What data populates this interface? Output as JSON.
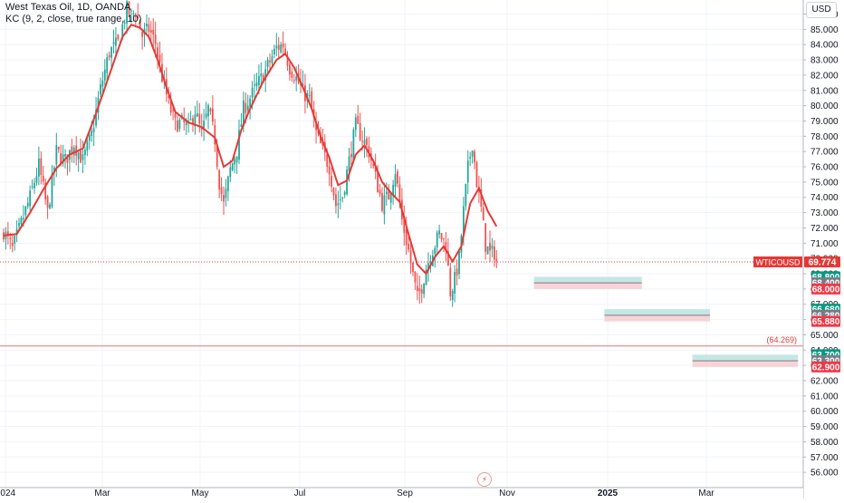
{
  "legend": {
    "symbol_line": "West Texas Oil, 1D, OANDA",
    "indicator_line": "KC (9, 2, close, true range, 10)"
  },
  "currency_button": "USD",
  "colors": {
    "up": "#26a69a",
    "down": "#ef5350",
    "kc_line": "#e53935",
    "price_line": "#e53935",
    "support_line": "#e57373",
    "zone_top": "#b2dfdb",
    "zone_bottom": "#f8c8cc",
    "axis_text": "#131722",
    "grid": "#f0f3fa"
  },
  "icons": {
    "time_marker": "lightning-icon"
  },
  "chart_data": {
    "type": "candlestick",
    "title": "West Texas Oil, 1D, OANDA",
    "indicator": "KC (9, 2, close, true range, 10)",
    "y_axis": {
      "side": "right",
      "range": [
        55.0,
        86.8
      ],
      "ticks": [
        "56.000",
        "57.000",
        "58.000",
        "59.000",
        "60.000",
        "61.000",
        "62.000",
        "63.000",
        "64.000",
        "65.000",
        "66.000",
        "67.000",
        "68.000",
        "69.000",
        "70.000",
        "71.000",
        "72.000",
        "73.000",
        "74.000",
        "75.000",
        "76.000",
        "77.000",
        "78.000",
        "79.000",
        "80.000",
        "81.000",
        "82.000",
        "83.000",
        "84.000",
        "85.000",
        "86.000"
      ]
    },
    "x_axis": {
      "ticks": [
        "2024",
        "Mar",
        "May",
        "Jul",
        "Sep",
        "Nov",
        "2025",
        "Mar"
      ],
      "bold_ticks": [
        "2025"
      ]
    },
    "grid": true,
    "close_anchors": [
      [
        0,
        71.8
      ],
      [
        4,
        70.6
      ],
      [
        8,
        72.3
      ],
      [
        12,
        74.0
      ],
      [
        16,
        76.1
      ],
      [
        20,
        73.0
      ],
      [
        24,
        77.0
      ],
      [
        28,
        76.4
      ],
      [
        32,
        77.5
      ],
      [
        36,
        76.4
      ],
      [
        40,
        78.1
      ],
      [
        44,
        81.1
      ],
      [
        48,
        83.5
      ],
      [
        52,
        84.1
      ],
      [
        56,
        86.3
      ],
      [
        58,
        85.9
      ],
      [
        60,
        86.2
      ],
      [
        63,
        84.6
      ],
      [
        66,
        85.0
      ],
      [
        69,
        84.1
      ],
      [
        72,
        81.9
      ],
      [
        75,
        80.1
      ],
      [
        78,
        78.8
      ],
      [
        81,
        78.9
      ],
      [
        84,
        78.5
      ],
      [
        87,
        79.7
      ],
      [
        90,
        78.1
      ],
      [
        93,
        79.8
      ],
      [
        96,
        77.8
      ],
      [
        98,
        75.0
      ],
      [
        100,
        73.5
      ],
      [
        103,
        75.8
      ],
      [
        106,
        77.1
      ],
      [
        109,
        79.8
      ],
      [
        112,
        80.5
      ],
      [
        115,
        81.3
      ],
      [
        118,
        82.0
      ],
      [
        121,
        82.9
      ],
      [
        124,
        83.8
      ],
      [
        127,
        84.0
      ],
      [
        130,
        82.5
      ],
      [
        133,
        81.8
      ],
      [
        136,
        80.9
      ],
      [
        139,
        80.4
      ],
      [
        142,
        78.2
      ],
      [
        145,
        77.0
      ],
      [
        148,
        76.0
      ],
      [
        151,
        73.5
      ],
      [
        154,
        74.1
      ],
      [
        157,
        76.4
      ],
      [
        160,
        78.7
      ],
      [
        163,
        77.9
      ],
      [
        166,
        77.0
      ],
      [
        169,
        75.3
      ],
      [
        172,
        73.6
      ],
      [
        175,
        74.1
      ],
      [
        178,
        75.8
      ],
      [
        181,
        72.5
      ],
      [
        184,
        70.5
      ],
      [
        186,
        68.9
      ],
      [
        188,
        67.4
      ],
      [
        190,
        68.2
      ],
      [
        192,
        69.4
      ],
      [
        195,
        70.6
      ],
      [
        198,
        71.6
      ],
      [
        201,
        70.9
      ],
      [
        203,
        67.8
      ],
      [
        205,
        68.6
      ],
      [
        207,
        70.0
      ],
      [
        209,
        73.1
      ],
      [
        211,
        75.9
      ],
      [
        213,
        77.6
      ],
      [
        215,
        75.0
      ],
      [
        217,
        73.2
      ],
      [
        219,
        70.9
      ],
      [
        221,
        70.3
      ],
      [
        223,
        70.4
      ],
      [
        224,
        69.8
      ]
    ],
    "keltner_middle_anchors": [
      [
        0,
        71.5
      ],
      [
        6,
        71.6
      ],
      [
        12,
        73.0
      ],
      [
        18,
        74.5
      ],
      [
        24,
        75.9
      ],
      [
        30,
        76.8
      ],
      [
        36,
        77.2
      ],
      [
        42,
        79.5
      ],
      [
        48,
        82.0
      ],
      [
        54,
        84.5
      ],
      [
        58,
        85.3
      ],
      [
        62,
        85.1
      ],
      [
        66,
        84.5
      ],
      [
        70,
        83.0
      ],
      [
        74,
        81.2
      ],
      [
        78,
        79.6
      ],
      [
        84,
        78.9
      ],
      [
        90,
        78.6
      ],
      [
        96,
        77.9
      ],
      [
        100,
        76.0
      ],
      [
        104,
        76.4
      ],
      [
        108,
        78.4
      ],
      [
        112,
        79.8
      ],
      [
        118,
        81.6
      ],
      [
        124,
        83.0
      ],
      [
        128,
        83.4
      ],
      [
        132,
        82.5
      ],
      [
        136,
        81.2
      ],
      [
        140,
        79.8
      ],
      [
        144,
        78.0
      ],
      [
        148,
        76.6
      ],
      [
        152,
        74.8
      ],
      [
        156,
        75.1
      ],
      [
        160,
        76.8
      ],
      [
        164,
        77.4
      ],
      [
        168,
        76.4
      ],
      [
        172,
        75.0
      ],
      [
        176,
        74.3
      ],
      [
        180,
        73.7
      ],
      [
        184,
        71.6
      ],
      [
        188,
        69.6
      ],
      [
        192,
        69.0
      ],
      [
        196,
        70.1
      ],
      [
        200,
        70.8
      ],
      [
        204,
        69.8
      ],
      [
        208,
        70.8
      ],
      [
        212,
        73.6
      ],
      [
        216,
        74.6
      ],
      [
        220,
        73.1
      ],
      [
        224,
        72.1
      ]
    ],
    "last_price": {
      "symbol": "WTICOUSD",
      "value": "69.774",
      "y": 69.774
    },
    "support_line": {
      "label": "(64.269)",
      "y": 64.269
    },
    "zones": [
      {
        "top": "68.800",
        "mid": "68.400",
        "bottom": "68.000",
        "top_y": 68.8,
        "mid_y": 68.4,
        "bottom_y": 68.0,
        "from_day": 241,
        "to_day": 290
      },
      {
        "top": "66.680",
        "mid": "66.280",
        "bottom": "65.880",
        "top_y": 66.68,
        "mid_y": 66.28,
        "bottom_y": 65.88,
        "from_day": 273,
        "to_day": 321
      },
      {
        "top": "63.700",
        "mid": "63.300",
        "bottom": "62.900",
        "top_y": 63.7,
        "mid_y": 63.3,
        "bottom_y": 62.9,
        "from_day": 313,
        "to_day": 361
      }
    ]
  }
}
